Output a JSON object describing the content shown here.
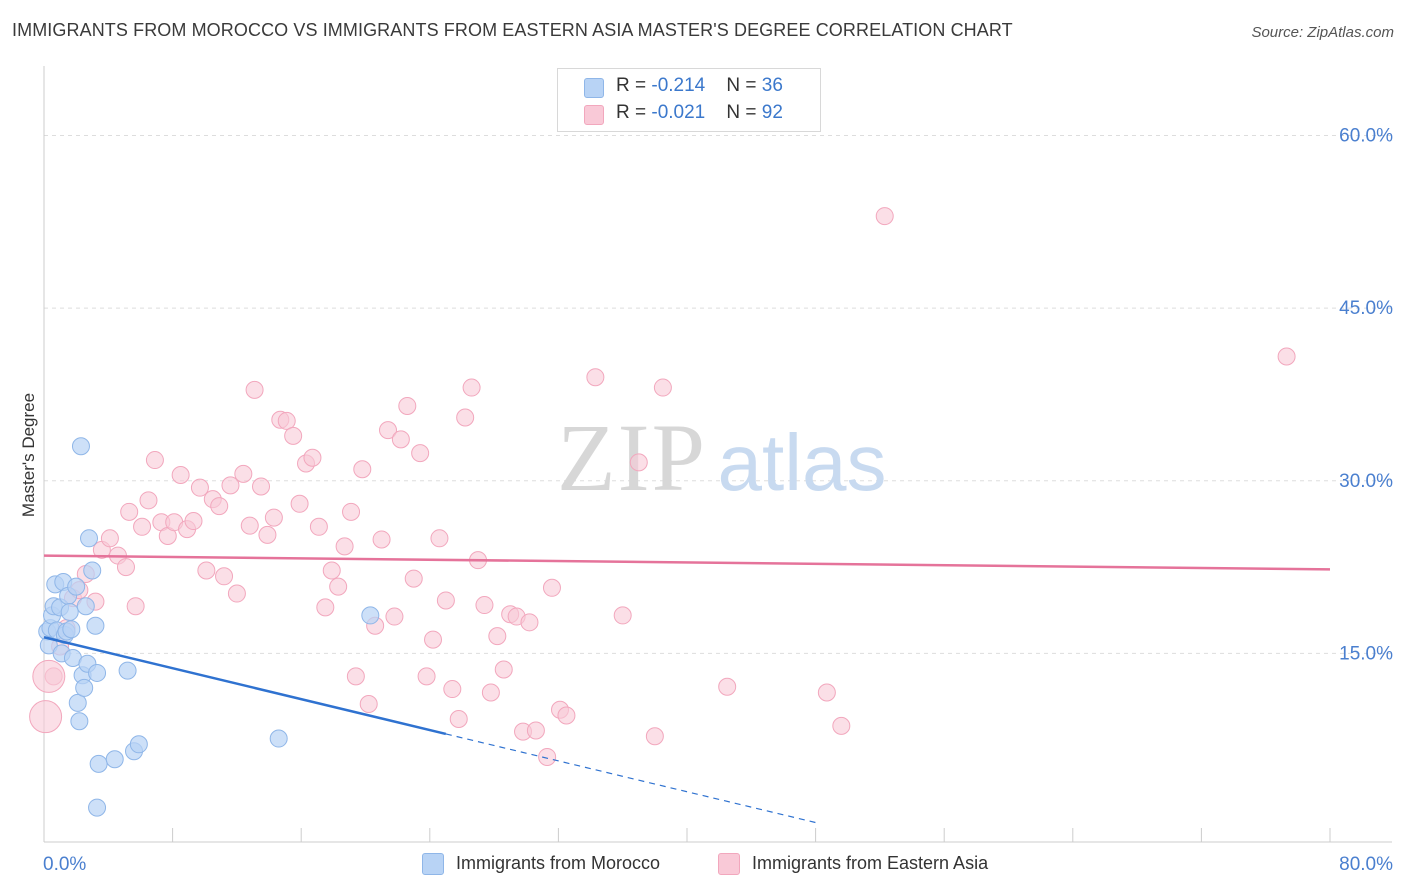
{
  "title": "IMMIGRANTS FROM MOROCCO VS IMMIGRANTS FROM EASTERN ASIA MASTER'S DEGREE CORRELATION CHART",
  "source": "Source: ZipAtlas.com",
  "legend": {
    "rows": [
      {
        "r_label": "R = ",
        "r_value": "-0.214",
        "n_label": "N = ",
        "n_value": "36"
      },
      {
        "r_label": "R = ",
        "r_value": "-0.021",
        "n_label": "N = ",
        "n_value": "92"
      }
    ]
  },
  "watermark": {
    "zip": "ZIP",
    "atlas": "atlas"
  },
  "colors": {
    "blue_fill": "#b8d3f5",
    "blue_stroke": "#8fb6e8",
    "blue_line": "#2f72d0",
    "pink_fill": "#f9c9d7",
    "pink_stroke": "#f2a7bd",
    "pink_line": "#e5739a",
    "grid": "#dddddd",
    "tick_label": "#4a7fcf"
  },
  "chart_data": {
    "type": "scatter",
    "title": "IMMIGRANTS FROM MOROCCO VS IMMIGRANTS FROM EASTERN ASIA MASTER'S DEGREE CORRELATION CHART",
    "xlabel": "",
    "ylabel": "Master's Degree",
    "xlim": [
      0,
      80
    ],
    "ylim": [
      0,
      65
    ],
    "x_tick_labels": [
      "0.0%",
      "80.0%"
    ],
    "y_ticks": [
      15,
      30,
      45,
      60
    ],
    "y_tick_labels": [
      "15.0%",
      "30.0%",
      "45.0%",
      "60.0%"
    ],
    "series": [
      {
        "name": "Immigrants from Morocco",
        "color": "blue",
        "r": "-0.214",
        "n": "36",
        "trend": {
          "x0": 0,
          "y0": 16.4,
          "x1": 25,
          "y1": 8.0,
          "dash_to_x": 48,
          "dash_to_y": 0.3
        },
        "points": [
          [
            0.2,
            16.9
          ],
          [
            0.3,
            15.7
          ],
          [
            0.4,
            17.2
          ],
          [
            0.5,
            18.3
          ],
          [
            0.6,
            19.1
          ],
          [
            0.7,
            21.0
          ],
          [
            0.8,
            17.0
          ],
          [
            1.0,
            19.0
          ],
          [
            1.1,
            15.0
          ],
          [
            1.2,
            21.2
          ],
          [
            1.3,
            16.6
          ],
          [
            1.4,
            16.9
          ],
          [
            1.5,
            20.0
          ],
          [
            1.6,
            18.6
          ],
          [
            1.7,
            17.1
          ],
          [
            1.8,
            14.6
          ],
          [
            2.0,
            20.8
          ],
          [
            2.1,
            10.7
          ],
          [
            2.2,
            9.1
          ],
          [
            2.3,
            33.0
          ],
          [
            2.4,
            13.1
          ],
          [
            2.6,
            19.1
          ],
          [
            2.7,
            14.1
          ],
          [
            2.8,
            25.0
          ],
          [
            3.0,
            22.2
          ],
          [
            3.2,
            17.4
          ],
          [
            3.3,
            13.3
          ],
          [
            3.4,
            5.4
          ],
          [
            3.3,
            1.6
          ],
          [
            4.4,
            5.8
          ],
          [
            5.2,
            13.5
          ],
          [
            5.6,
            6.5
          ],
          [
            5.9,
            7.1
          ],
          [
            14.6,
            7.6
          ],
          [
            20.3,
            18.3
          ],
          [
            2.5,
            12.0
          ]
        ]
      },
      {
        "name": "Immigrants from Eastern Asia",
        "color": "pink",
        "r": "-0.021",
        "n": "92",
        "trend": {
          "x0": 0,
          "y0": 23.5,
          "x1": 80,
          "y1": 22.3
        },
        "points": [
          [
            0.1,
            9.5
          ],
          [
            0.6,
            13.0
          ],
          [
            1.0,
            15.6
          ],
          [
            1.4,
            17.2
          ],
          [
            1.8,
            19.8
          ],
          [
            2.2,
            20.5
          ],
          [
            2.6,
            21.9
          ],
          [
            3.2,
            19.5
          ],
          [
            3.6,
            24.0
          ],
          [
            4.1,
            25.0
          ],
          [
            4.6,
            23.5
          ],
          [
            5.1,
            22.5
          ],
          [
            5.3,
            27.3
          ],
          [
            5.7,
            19.1
          ],
          [
            6.1,
            26.0
          ],
          [
            6.5,
            28.3
          ],
          [
            6.9,
            31.8
          ],
          [
            7.3,
            26.4
          ],
          [
            7.7,
            25.2
          ],
          [
            8.1,
            26.4
          ],
          [
            8.5,
            30.5
          ],
          [
            8.9,
            25.8
          ],
          [
            9.3,
            26.5
          ],
          [
            9.7,
            29.4
          ],
          [
            10.1,
            22.2
          ],
          [
            10.5,
            28.4
          ],
          [
            10.9,
            27.8
          ],
          [
            11.2,
            21.7
          ],
          [
            11.6,
            29.6
          ],
          [
            12.0,
            20.2
          ],
          [
            12.4,
            30.6
          ],
          [
            12.8,
            26.1
          ],
          [
            13.1,
            37.9
          ],
          [
            13.5,
            29.5
          ],
          [
            13.9,
            25.3
          ],
          [
            14.3,
            26.8
          ],
          [
            14.7,
            35.3
          ],
          [
            15.1,
            35.2
          ],
          [
            15.5,
            33.9
          ],
          [
            15.9,
            28.0
          ],
          [
            16.3,
            31.5
          ],
          [
            16.7,
            32.0
          ],
          [
            17.1,
            26.0
          ],
          [
            17.5,
            19.0
          ],
          [
            17.9,
            22.2
          ],
          [
            18.3,
            20.8
          ],
          [
            18.7,
            24.3
          ],
          [
            19.1,
            27.3
          ],
          [
            19.4,
            13.0
          ],
          [
            19.8,
            31.0
          ],
          [
            20.2,
            10.6
          ],
          [
            20.6,
            17.4
          ],
          [
            21.0,
            24.9
          ],
          [
            21.4,
            34.4
          ],
          [
            21.8,
            18.2
          ],
          [
            22.2,
            33.6
          ],
          [
            22.6,
            36.5
          ],
          [
            23.0,
            21.5
          ],
          [
            23.4,
            32.4
          ],
          [
            23.8,
            13.0
          ],
          [
            24.2,
            16.2
          ],
          [
            24.6,
            25.0
          ],
          [
            25.0,
            19.6
          ],
          [
            25.4,
            11.9
          ],
          [
            25.8,
            9.3
          ],
          [
            26.2,
            35.5
          ],
          [
            26.6,
            38.1
          ],
          [
            27.0,
            23.1
          ],
          [
            27.4,
            19.2
          ],
          [
            27.8,
            11.6
          ],
          [
            28.2,
            16.5
          ],
          [
            28.6,
            13.6
          ],
          [
            29.0,
            18.4
          ],
          [
            29.4,
            18.2
          ],
          [
            29.8,
            8.2
          ],
          [
            30.2,
            17.7
          ],
          [
            30.6,
            8.3
          ],
          [
            31.3,
            6.0
          ],
          [
            31.6,
            20.7
          ],
          [
            32.1,
            10.1
          ],
          [
            32.5,
            9.6
          ],
          [
            34.3,
            39.0
          ],
          [
            36.0,
            18.3
          ],
          [
            37.0,
            31.6
          ],
          [
            38.0,
            7.8
          ],
          [
            38.5,
            38.1
          ],
          [
            42.5,
            12.1
          ],
          [
            48.7,
            11.6
          ],
          [
            49.6,
            8.7
          ],
          [
            52.3,
            53.0
          ],
          [
            77.3,
            40.8
          ],
          [
            0.3,
            13.0
          ]
        ]
      }
    ]
  },
  "bottom_legend": {
    "blue_label": "Immigrants from Morocco",
    "pink_label": "Immigrants from Eastern Asia"
  }
}
